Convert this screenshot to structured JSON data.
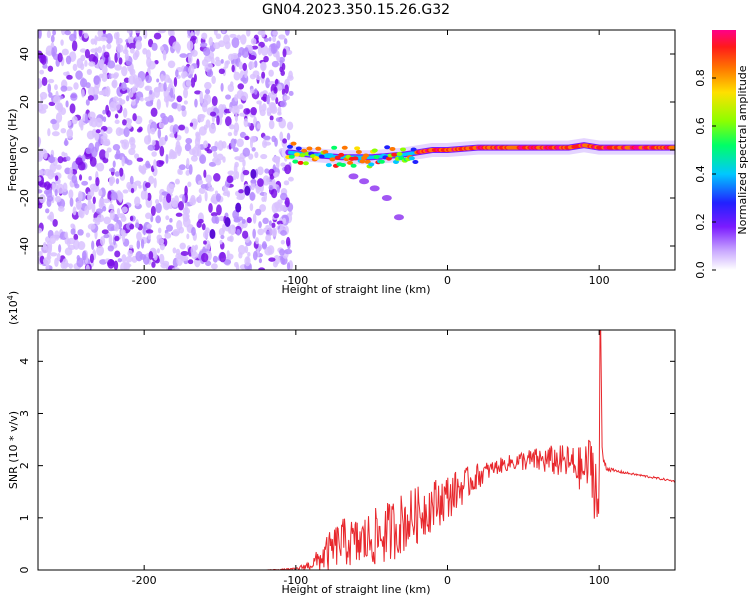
{
  "figure_title": "GN04.2023.350.15.26.G32",
  "colors": {
    "snr_line": "#e8282d",
    "axis": "#000000",
    "spectrogram_background": "#ffffff",
    "speckle_light": "#d9c2ff",
    "speckle_dark": "#7a0fe8"
  },
  "chart_data": [
    {
      "type": "heatmap",
      "xlabel": "Height of straight line (km)",
      "ylabel": "Frequency (Hz)",
      "xlim": [
        -270,
        150
      ],
      "ylim": [
        -50,
        50
      ],
      "xticks": [
        -200,
        -100,
        0,
        100
      ],
      "yticks": [
        -40,
        -20,
        0,
        20,
        40
      ],
      "grid": false,
      "noise_region_x": [
        -270,
        -103
      ],
      "main_track": {
        "description_points_x": [
          -105,
          -90,
          -70,
          -50,
          -30,
          -10,
          0,
          20,
          50,
          80,
          90,
          100,
          120,
          150
        ],
        "description_points_y": [
          -1,
          -2,
          -3,
          -3,
          -2,
          0,
          0,
          1,
          1,
          1,
          2,
          1,
          1,
          1
        ]
      },
      "secondary_track": {
        "x": [
          -62,
          -55,
          -48,
          -40,
          -32
        ],
        "y": [
          -11,
          -13,
          -16,
          -20,
          -28
        ]
      },
      "chirp_track_in_noise": {
        "x": [
          -155,
          -145,
          -138,
          -132,
          -128
        ],
        "y": [
          -35,
          -30,
          -24,
          -17,
          -10
        ]
      },
      "colorbar": {
        "label": "Normalized spectral amplitude",
        "ticks": [
          "0.0",
          "0.2",
          "0.4",
          "0.6",
          "0.8"
        ],
        "range": [
          0,
          1
        ],
        "stops": [
          "#ffffff",
          "#c9a8ff",
          "#7b1bff",
          "#2121ff",
          "#00c8ff",
          "#00ff66",
          "#8cff00",
          "#ffe000",
          "#ff7700",
          "#ff1a1a",
          "#ff0088"
        ]
      }
    },
    {
      "type": "line",
      "xlabel": "Height of straight line (km)",
      "ylabel": "SNR (10 * v/v)",
      "y_multiplier": "(x10",
      "y_multiplier_exp": "4",
      "y_multiplier_close": ")",
      "xlim": [
        -270,
        150
      ],
      "ylim": [
        0,
        4.6
      ],
      "xticks": [
        -200,
        -100,
        0,
        100
      ],
      "yticks": [
        0,
        1,
        2,
        3,
        4
      ],
      "grid": false,
      "series": [
        {
          "x": [
            -270,
            -200,
            -120,
            -100,
            -90,
            -80,
            -70,
            -60,
            -50,
            -40,
            -30,
            -20,
            -10,
            0,
            10,
            20,
            30,
            40,
            50,
            60,
            70,
            80,
            90,
            95,
            98,
            100,
            101,
            102,
            105,
            110,
            120,
            130,
            140,
            150
          ],
          "y": [
            0.0,
            0.0,
            0.0,
            0.02,
            0.1,
            0.3,
            0.55,
            0.5,
            0.6,
            0.7,
            0.9,
            1.05,
            1.25,
            1.4,
            1.6,
            1.8,
            1.95,
            2.05,
            2.1,
            2.1,
            2.1,
            2.05,
            1.9,
            2.1,
            1.5,
            1.0,
            4.6,
            2.2,
            1.95,
            1.9,
            1.85,
            1.8,
            1.75,
            1.7
          ],
          "noise_amplitude": [
            0,
            0,
            0,
            0.02,
            0.1,
            0.35,
            0.45,
            0.5,
            0.55,
            0.6,
            0.6,
            0.55,
            0.5,
            0.45,
            0.35,
            0.25,
            0.15,
            0.15,
            0.2,
            0.25,
            0.3,
            0.35,
            0.45,
            0.6,
            0.9,
            1.0,
            0,
            0.1,
            0.05,
            0.03,
            0.02,
            0.02,
            0.02,
            0.02
          ]
        }
      ]
    }
  ]
}
